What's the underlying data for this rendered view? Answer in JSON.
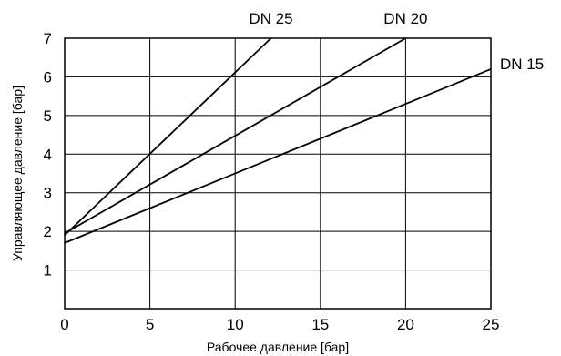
{
  "chart_data": {
    "type": "line",
    "title": "",
    "xlabel": "Рабочее давление [бар]",
    "ylabel": "Управляющее давление [бар]",
    "xlim": [
      0,
      25
    ],
    "ylim": [
      0,
      7
    ],
    "xticks": [
      0,
      5,
      10,
      15,
      20,
      25
    ],
    "yticks": [
      1,
      2,
      3,
      4,
      5,
      6,
      7
    ],
    "xgrid": [
      0,
      5,
      10,
      15,
      20,
      25
    ],
    "ygrid": [
      0,
      1,
      2,
      3,
      4,
      5,
      6,
      7
    ],
    "grid": true,
    "legend": "labels at line ends",
    "series": [
      {
        "name": "DN 25",
        "x": [
          0,
          12.1
        ],
        "y": [
          1.9,
          7.0
        ]
      },
      {
        "name": "DN 20",
        "x": [
          0,
          20.0
        ],
        "y": [
          1.95,
          7.0
        ]
      },
      {
        "name": "DN 15",
        "x": [
          0,
          25.0
        ],
        "y": [
          1.7,
          6.2
        ]
      }
    ]
  }
}
